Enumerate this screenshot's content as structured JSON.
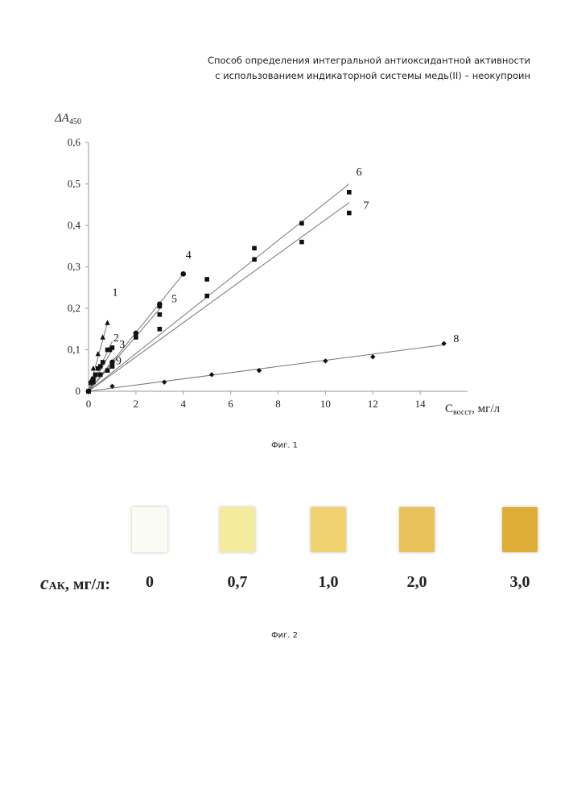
{
  "header": {
    "line1": "Способ определения интегральной антиоксидантной активности",
    "line2": "с использованием индикаторной системы медь(II) – неокупроин"
  },
  "fig1_caption": "Фиг. 1",
  "fig2_caption": "Фиг. 2",
  "chart_data": {
    "type": "scatter",
    "ylabel_main": "ΔA",
    "ylabel_sub": "450",
    "xlabel_main": "C",
    "xlabel_sub": "восст",
    "xlabel_unit": ", мг/л",
    "xlim": [
      0,
      16
    ],
    "ylim": [
      0,
      0.6
    ],
    "x_ticks": [
      "0",
      "2",
      "4",
      "6",
      "8",
      "10",
      "12",
      "14"
    ],
    "y_ticks": [
      "0",
      "0,1",
      "0,2",
      "0,3",
      "0,4",
      "0,5",
      "0,6"
    ],
    "grid": false,
    "series": [
      {
        "label": "1",
        "marker": "triangle",
        "points": [
          [
            0,
            0
          ],
          [
            0.1,
            0.025
          ],
          [
            0.2,
            0.055
          ],
          [
            0.4,
            0.09
          ],
          [
            0.6,
            0.13
          ],
          [
            0.8,
            0.165
          ]
        ],
        "line": [
          [
            0,
            0
          ],
          [
            0.8,
            0.165
          ]
        ],
        "label_pos": [
          1.0,
          0.23
        ]
      },
      {
        "label": "2",
        "marker": "square",
        "points": [
          [
            0.1,
            0.02
          ],
          [
            0.3,
            0.04
          ],
          [
            0.5,
            0.06
          ],
          [
            0.8,
            0.1
          ],
          [
            1.0,
            0.105
          ]
        ],
        "line": [
          [
            0,
            0
          ],
          [
            1.0,
            0.12
          ]
        ],
        "label_pos": [
          1.05,
          0.12
        ]
      },
      {
        "label": "3",
        "marker": "square",
        "points": [
          [
            0.2,
            0.03
          ],
          [
            0.4,
            0.055
          ],
          [
            0.6,
            0.07
          ],
          [
            0.9,
            0.1
          ]
        ],
        "line": [
          [
            0,
            0
          ],
          [
            1.0,
            0.1
          ]
        ],
        "label_pos": [
          1.3,
          0.105
        ]
      },
      {
        "label": "4",
        "marker": "circle",
        "points": [
          [
            0,
            0
          ],
          [
            1.0,
            0.07
          ],
          [
            2.0,
            0.14
          ],
          [
            3.0,
            0.21
          ],
          [
            4.0,
            0.283
          ]
        ],
        "line": [
          [
            0,
            0
          ],
          [
            4.0,
            0.283
          ]
        ],
        "label_pos": [
          4.1,
          0.32
        ]
      },
      {
        "label": "5",
        "marker": "square",
        "points": [
          [
            0,
            0
          ],
          [
            1.0,
            0.06
          ],
          [
            2.0,
            0.13
          ],
          [
            3.0,
            0.185
          ],
          [
            3.0,
            0.205
          ]
        ],
        "line": [
          [
            0,
            0
          ],
          [
            3.1,
            0.205
          ]
        ],
        "label_pos": [
          3.5,
          0.215
        ]
      },
      {
        "label": "6",
        "marker": "square",
        "points": [
          [
            3.0,
            0.15
          ],
          [
            5.0,
            0.27
          ],
          [
            7.0,
            0.345
          ],
          [
            9.0,
            0.405
          ],
          [
            11.0,
            0.48
          ]
        ],
        "line": [
          [
            0,
            0
          ],
          [
            11.0,
            0.5
          ]
        ],
        "label_pos": [
          11.3,
          0.52
        ]
      },
      {
        "label": "7",
        "marker": "square",
        "points": [
          [
            5.0,
            0.23
          ],
          [
            7.0,
            0.318
          ],
          [
            9.0,
            0.36
          ],
          [
            11.0,
            0.43
          ]
        ],
        "line": [
          [
            0,
            0
          ],
          [
            11.0,
            0.455
          ]
        ],
        "label_pos": [
          11.6,
          0.44
        ]
      },
      {
        "label": "8",
        "marker": "diamond",
        "points": [
          [
            0,
            0
          ],
          [
            1.0,
            0.012
          ],
          [
            3.2,
            0.022
          ],
          [
            5.2,
            0.04
          ],
          [
            7.2,
            0.05
          ],
          [
            10.0,
            0.073
          ],
          [
            12.0,
            0.083
          ],
          [
            15.0,
            0.115
          ]
        ],
        "line": [
          [
            0,
            0
          ],
          [
            15.0,
            0.112
          ]
        ],
        "label_pos": [
          15.4,
          0.118
        ]
      },
      {
        "label": "9",
        "marker": "square",
        "points": [
          [
            0.2,
            0.022
          ],
          [
            0.5,
            0.04
          ],
          [
            0.8,
            0.05
          ],
          [
            1.0,
            0.06
          ]
        ],
        "line": [
          [
            0,
            0
          ],
          [
            1.1,
            0.08
          ]
        ],
        "label_pos": [
          1.15,
          0.065
        ]
      }
    ]
  },
  "fig2": {
    "axis_label_main": "c",
    "axis_label_sub": "АК",
    "axis_label_unit": ", мг/л:",
    "samples": [
      {
        "value": "0",
        "color": "#fbfbf6"
      },
      {
        "value": "0,7",
        "color": "#f4ec9c"
      },
      {
        "value": "1,0",
        "color": "#f0d270"
      },
      {
        "value": "2,0",
        "color": "#e9c259"
      },
      {
        "value": "3,0",
        "color": "#ddad35"
      }
    ]
  }
}
